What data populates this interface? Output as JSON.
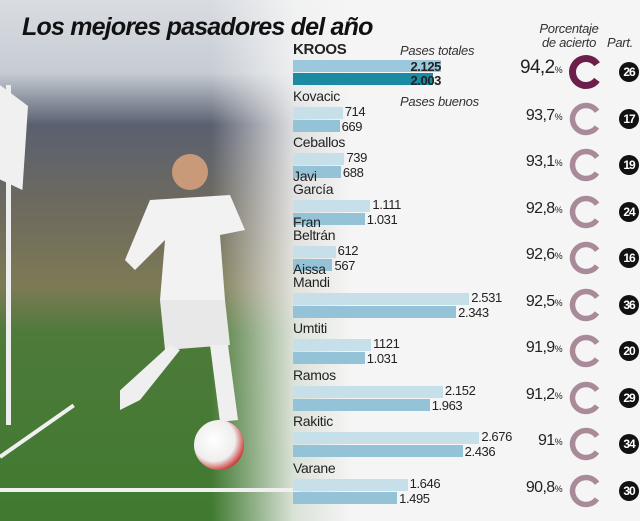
{
  "title": "Los mejores pasadores del año",
  "headers": {
    "total": "Pases totales",
    "good": "Pases buenos",
    "accuracy": "Porcentaje de acierto",
    "matches": "Part."
  },
  "colors": {
    "total_bar": "#c6dfe9",
    "good_bar": "#94c3d7",
    "highlight_good_bar": "#1b8aa3",
    "highlight_ring": "#6b1f4a",
    "ring": "#a88a99"
  },
  "chart_data": {
    "type": "bar",
    "orientation": "horizontal",
    "series": [
      {
        "name": "Pases totales"
      },
      {
        "name": "Pases buenos"
      }
    ],
    "rows": [
      {
        "name": "KROOS",
        "total": 2125,
        "total_label": "2.125",
        "good": 2003,
        "good_label": "2.003",
        "pct": 94.2,
        "pct_label": "94,2",
        "matches": "26"
      },
      {
        "name": "Kovacic",
        "total": 714,
        "total_label": "714",
        "good": 669,
        "good_label": "669",
        "pct": 93.7,
        "pct_label": "93,7",
        "matches": "17"
      },
      {
        "name": "Ceballos",
        "total": 739,
        "total_label": "739",
        "good": 688,
        "good_label": "688",
        "pct": 93.1,
        "pct_label": "93,1",
        "matches": "19"
      },
      {
        "name": "Javi\nGarcía",
        "total": 1111,
        "total_label": "1.111",
        "good": 1031,
        "good_label": "1.031",
        "pct": 92.8,
        "pct_label": "92,8",
        "matches": "24"
      },
      {
        "name": "Fran\nBeltrán",
        "total": 612,
        "total_label": "612",
        "good": 567,
        "good_label": "567",
        "pct": 92.6,
        "pct_label": "92,6",
        "matches": "16"
      },
      {
        "name": "Aissa\nMandi",
        "total": 2531,
        "total_label": "2.531",
        "good": 2343,
        "good_label": "2.343",
        "pct": 92.5,
        "pct_label": "92,5",
        "matches": "36"
      },
      {
        "name": "Umtiti",
        "total": 1121,
        "total_label": "1121",
        "good": 1031,
        "good_label": "1.031",
        "pct": 91.9,
        "pct_label": "91,9",
        "matches": "20"
      },
      {
        "name": "Ramos",
        "total": 2152,
        "total_label": "2.152",
        "good": 1963,
        "good_label": "1.963",
        "pct": 91.2,
        "pct_label": "91,2",
        "matches": "29"
      },
      {
        "name": "Rakitic",
        "total": 2676,
        "total_label": "2.676",
        "good": 2436,
        "good_label": "2.436",
        "pct": 91,
        "pct_label": "91",
        "matches": "34"
      },
      {
        "name": "Varane",
        "total": 1646,
        "total_label": "1.646",
        "good": 1495,
        "good_label": "1.495",
        "pct": 90.8,
        "pct_label": "90,8",
        "matches": "30"
      }
    ],
    "pct_unit": "%"
  }
}
